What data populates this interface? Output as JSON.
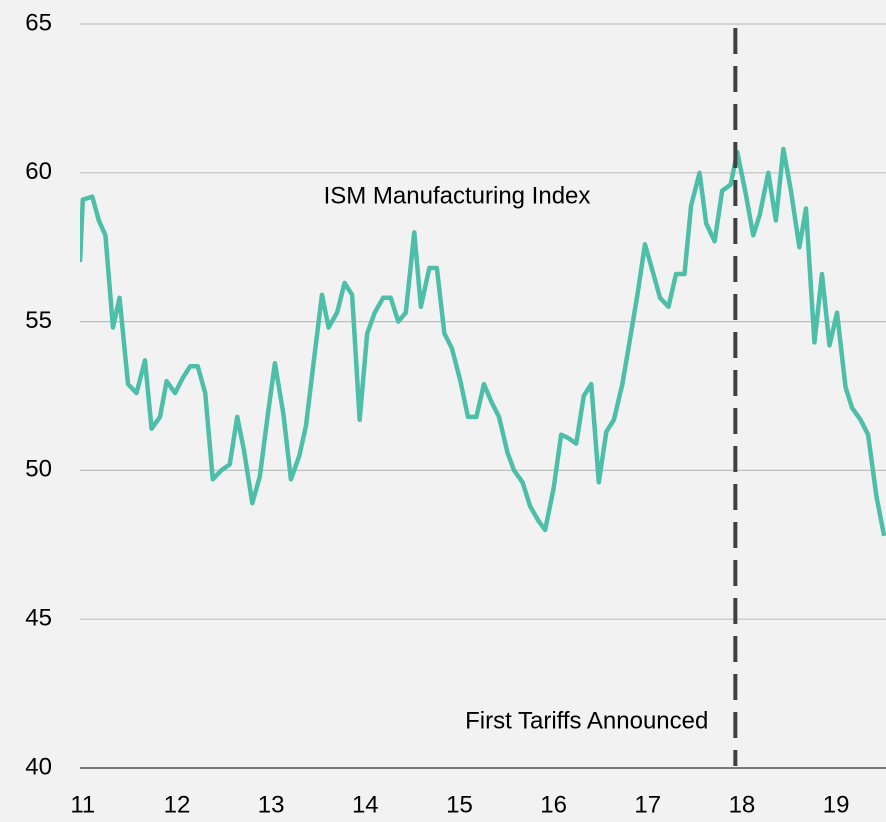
{
  "chart_data": {
    "type": "line",
    "title": "ISM Manufacturing Index",
    "xlim": [
      10.97,
      19.53
    ],
    "xticks": [
      11,
      12,
      13,
      14,
      15,
      16,
      17,
      18,
      19
    ],
    "ylim": [
      40,
      65
    ],
    "yticks": [
      40,
      45,
      50,
      55,
      60,
      65
    ],
    "grid": true,
    "vline": {
      "x": 17.93,
      "label": "First Tariffs Announced",
      "color": "#404040"
    },
    "series": [
      {
        "color": "#4dbfa8",
        "x": [
          10.97,
          11.0,
          11.1,
          11.17,
          11.24,
          11.32,
          11.39,
          11.48,
          11.57,
          11.66,
          11.73,
          11.82,
          11.89,
          11.98,
          12.06,
          12.14,
          12.22,
          12.3,
          12.38,
          12.47,
          12.56,
          12.64,
          12.71,
          12.8,
          12.88,
          12.97,
          13.04,
          13.13,
          13.21,
          13.3,
          13.37,
          13.45,
          13.54,
          13.61,
          13.7,
          13.78,
          13.86,
          13.94,
          14.02,
          14.1,
          14.19,
          14.27,
          14.35,
          14.43,
          14.52,
          14.59,
          14.68,
          14.76,
          14.84,
          14.92,
          15.01,
          15.09,
          15.18,
          15.26,
          15.34,
          15.42,
          15.51,
          15.58,
          15.67,
          15.75,
          15.84,
          15.91,
          16.0,
          16.08,
          16.15,
          16.24,
          16.32,
          16.4,
          16.48,
          16.56,
          16.64,
          16.73,
          16.8,
          16.89,
          16.97,
          17.06,
          17.13,
          17.22,
          17.3,
          17.39,
          17.46,
          17.55,
          17.62,
          17.71,
          17.79,
          17.88,
          17.95,
          18.04,
          18.12,
          18.19,
          18.28,
          18.36,
          18.44,
          18.52,
          18.61,
          18.68,
          18.77,
          18.85,
          18.93,
          19.01,
          19.1,
          19.17,
          19.26,
          19.34,
          19.43,
          19.51
        ],
        "values": [
          57.0,
          59.1,
          59.2,
          58.4,
          57.9,
          54.8,
          55.8,
          52.9,
          52.6,
          53.7,
          51.4,
          51.8,
          53.0,
          52.6,
          53.1,
          53.5,
          53.5,
          52.6,
          49.7,
          50.0,
          50.2,
          51.8,
          50.7,
          48.9,
          49.8,
          52.0,
          53.6,
          51.9,
          49.7,
          50.5,
          51.5,
          53.6,
          55.9,
          54.8,
          55.3,
          56.3,
          55.9,
          51.7,
          54.6,
          55.3,
          55.8,
          55.8,
          55.0,
          55.3,
          58.0,
          55.5,
          56.8,
          56.8,
          54.6,
          54.1,
          53.0,
          51.8,
          51.8,
          52.9,
          52.3,
          51.8,
          50.6,
          50.0,
          49.6,
          48.8,
          48.3,
          48.0,
          49.4,
          51.2,
          51.1,
          50.9,
          52.5,
          52.9,
          49.6,
          51.3,
          51.7,
          52.9,
          54.2,
          55.9,
          57.6,
          56.6,
          55.8,
          55.5,
          56.6,
          56.6,
          58.9,
          60.0,
          58.3,
          57.7,
          59.4,
          59.6,
          60.7,
          59.3,
          57.9,
          58.6,
          60.0,
          58.4,
          60.8,
          59.4,
          57.5,
          58.8,
          54.3,
          56.6,
          54.2,
          55.3,
          52.8,
          52.1,
          51.7,
          51.2,
          49.1,
          47.8
        ]
      }
    ]
  }
}
